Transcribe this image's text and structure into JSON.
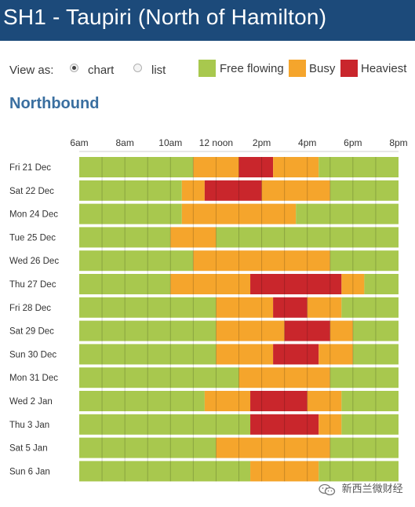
{
  "header": {
    "title": "SH1 - Taupiri (North of Hamilton)"
  },
  "view": {
    "label": "View as:",
    "options": [
      {
        "label": "chart",
        "selected": true
      },
      {
        "label": "list",
        "selected": false
      }
    ]
  },
  "legend": [
    {
      "label": "Free flowing",
      "color": "#a8c84e"
    },
    {
      "label": "Busy",
      "color": "#f5a52c"
    },
    {
      "label": "Heaviest",
      "color": "#c9262c"
    }
  ],
  "section_title": "Northbound",
  "watermark": "新西兰微财经",
  "chart_data": {
    "type": "heatmap",
    "x_ticks": [
      "6am",
      "8am",
      "10am",
      "12 noon",
      "2pm",
      "4pm",
      "6pm",
      "8pm"
    ],
    "x_range_hours": [
      6,
      20
    ],
    "rows": [
      {
        "label": "Fri 21 Dec",
        "segments": [
          {
            "start": 6,
            "end": 11,
            "level": "free"
          },
          {
            "start": 11,
            "end": 13,
            "level": "busy"
          },
          {
            "start": 13,
            "end": 14.5,
            "level": "heaviest"
          },
          {
            "start": 14.5,
            "end": 16.5,
            "level": "busy"
          },
          {
            "start": 16.5,
            "end": 20,
            "level": "free"
          }
        ]
      },
      {
        "label": "Sat 22 Dec",
        "segments": [
          {
            "start": 6,
            "end": 10.5,
            "level": "free"
          },
          {
            "start": 10.5,
            "end": 11.5,
            "level": "busy"
          },
          {
            "start": 11.5,
            "end": 14,
            "level": "heaviest"
          },
          {
            "start": 14,
            "end": 17,
            "level": "busy"
          },
          {
            "start": 17,
            "end": 20,
            "level": "free"
          }
        ]
      },
      {
        "label": "Mon 24 Dec",
        "segments": [
          {
            "start": 6,
            "end": 10.5,
            "level": "free"
          },
          {
            "start": 10.5,
            "end": 15.5,
            "level": "busy"
          },
          {
            "start": 15.5,
            "end": 20,
            "level": "free"
          }
        ]
      },
      {
        "label": "Tue 25 Dec",
        "segments": [
          {
            "start": 6,
            "end": 10,
            "level": "free"
          },
          {
            "start": 10,
            "end": 12,
            "level": "busy"
          },
          {
            "start": 12,
            "end": 20,
            "level": "free"
          }
        ]
      },
      {
        "label": "Wed 26 Dec",
        "segments": [
          {
            "start": 6,
            "end": 11,
            "level": "free"
          },
          {
            "start": 11,
            "end": 17,
            "level": "busy"
          },
          {
            "start": 17,
            "end": 20,
            "level": "free"
          }
        ]
      },
      {
        "label": "Thu 27 Dec",
        "segments": [
          {
            "start": 6,
            "end": 10,
            "level": "free"
          },
          {
            "start": 10,
            "end": 13.5,
            "level": "busy"
          },
          {
            "start": 13.5,
            "end": 17.5,
            "level": "heaviest"
          },
          {
            "start": 17.5,
            "end": 18.5,
            "level": "busy"
          },
          {
            "start": 18.5,
            "end": 20,
            "level": "free"
          }
        ]
      },
      {
        "label": "Fri 28 Dec",
        "segments": [
          {
            "start": 6,
            "end": 12,
            "level": "free"
          },
          {
            "start": 12,
            "end": 14.5,
            "level": "busy"
          },
          {
            "start": 14.5,
            "end": 16,
            "level": "heaviest"
          },
          {
            "start": 16,
            "end": 17.5,
            "level": "busy"
          },
          {
            "start": 17.5,
            "end": 20,
            "level": "free"
          }
        ]
      },
      {
        "label": "Sat 29 Dec",
        "segments": [
          {
            "start": 6,
            "end": 12,
            "level": "free"
          },
          {
            "start": 12,
            "end": 15,
            "level": "busy"
          },
          {
            "start": 15,
            "end": 17,
            "level": "heaviest"
          },
          {
            "start": 17,
            "end": 18,
            "level": "busy"
          },
          {
            "start": 18,
            "end": 20,
            "level": "free"
          }
        ]
      },
      {
        "label": "Sun 30 Dec",
        "segments": [
          {
            "start": 6,
            "end": 12,
            "level": "free"
          },
          {
            "start": 12,
            "end": 14.5,
            "level": "busy"
          },
          {
            "start": 14.5,
            "end": 16.5,
            "level": "heaviest"
          },
          {
            "start": 16.5,
            "end": 18,
            "level": "busy"
          },
          {
            "start": 18,
            "end": 20,
            "level": "free"
          }
        ]
      },
      {
        "label": "Mon 31 Dec",
        "segments": [
          {
            "start": 6,
            "end": 13,
            "level": "free"
          },
          {
            "start": 13,
            "end": 17,
            "level": "busy"
          },
          {
            "start": 17,
            "end": 20,
            "level": "free"
          }
        ]
      },
      {
        "label": "Wed 2 Jan",
        "segments": [
          {
            "start": 6,
            "end": 11.5,
            "level": "free"
          },
          {
            "start": 11.5,
            "end": 13.5,
            "level": "busy"
          },
          {
            "start": 13.5,
            "end": 16,
            "level": "heaviest"
          },
          {
            "start": 16,
            "end": 17.5,
            "level": "busy"
          },
          {
            "start": 17.5,
            "end": 20,
            "level": "free"
          }
        ]
      },
      {
        "label": "Thu 3 Jan",
        "segments": [
          {
            "start": 6,
            "end": 13.5,
            "level": "free"
          },
          {
            "start": 13.5,
            "end": 16.5,
            "level": "heaviest"
          },
          {
            "start": 16.5,
            "end": 17.5,
            "level": "busy"
          },
          {
            "start": 17.5,
            "end": 20,
            "level": "free"
          }
        ]
      },
      {
        "label": "Sat 5 Jan",
        "segments": [
          {
            "start": 6,
            "end": 12,
            "level": "free"
          },
          {
            "start": 12,
            "end": 17,
            "level": "busy"
          },
          {
            "start": 17,
            "end": 20,
            "level": "free"
          }
        ]
      },
      {
        "label": "Sun 6 Jan",
        "segments": [
          {
            "start": 6,
            "end": 13.5,
            "level": "free"
          },
          {
            "start": 13.5,
            "end": 16.5,
            "level": "busy"
          },
          {
            "start": 16.5,
            "end": 20,
            "level": "free"
          }
        ]
      }
    ],
    "level_colors": {
      "free": "#a8c84e",
      "busy": "#f5a52c",
      "heaviest": "#c9262c"
    }
  }
}
